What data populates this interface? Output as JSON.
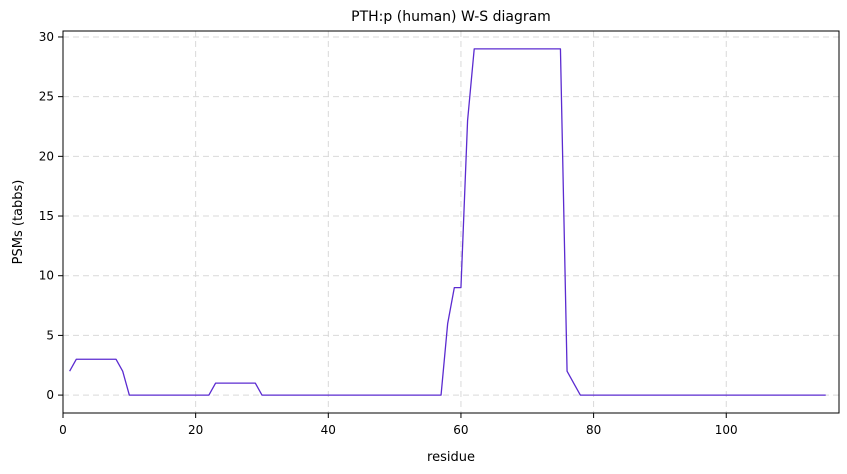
{
  "chart_data": {
    "type": "line",
    "title": "PTH:p (human) W-S diagram",
    "xlabel": "residue",
    "ylabel": "PSMs (tabbs)",
    "xlim": [
      0,
      117
    ],
    "ylim": [
      -1.5,
      30.5
    ],
    "xticks": [
      0,
      20,
      40,
      60,
      80,
      100
    ],
    "yticks": [
      0,
      5,
      10,
      15,
      20,
      25,
      30
    ],
    "grid": true,
    "series": [
      {
        "color": "#5b2bd0",
        "x": [
          1,
          2,
          3,
          4,
          5,
          6,
          7,
          8,
          9,
          10,
          11,
          12,
          13,
          14,
          15,
          16,
          17,
          18,
          19,
          20,
          21,
          22,
          23,
          24,
          25,
          26,
          27,
          28,
          29,
          30,
          31,
          32,
          33,
          34,
          35,
          36,
          37,
          38,
          39,
          40,
          41,
          42,
          43,
          44,
          45,
          46,
          47,
          48,
          49,
          50,
          51,
          52,
          53,
          54,
          55,
          56,
          57,
          58,
          59,
          60,
          61,
          62,
          63,
          64,
          65,
          66,
          67,
          68,
          69,
          70,
          71,
          72,
          73,
          74,
          75,
          76,
          77,
          78,
          79,
          80,
          81,
          82,
          83,
          84,
          85,
          86,
          87,
          88,
          89,
          90,
          91,
          92,
          93,
          94,
          95,
          96,
          97,
          98,
          99,
          100,
          101,
          102,
          103,
          104,
          105,
          106,
          107,
          108,
          109,
          110,
          111,
          112,
          113,
          114,
          115
        ],
        "y": [
          2,
          3,
          3,
          3,
          3,
          3,
          3,
          3,
          2,
          0,
          0,
          0,
          0,
          0,
          0,
          0,
          0,
          0,
          0,
          0,
          0,
          0,
          1,
          1,
          1,
          1,
          1,
          1,
          1,
          0,
          0,
          0,
          0,
          0,
          0,
          0,
          0,
          0,
          0,
          0,
          0,
          0,
          0,
          0,
          0,
          0,
          0,
          0,
          0,
          0,
          0,
          0,
          0,
          0,
          0,
          0,
          0,
          6,
          9,
          9,
          23,
          29,
          29,
          29,
          29,
          29,
          29,
          29,
          29,
          29,
          29,
          29,
          29,
          29,
          29,
          2,
          1,
          0,
          0,
          0,
          0,
          0,
          0,
          0,
          0,
          0,
          0,
          0,
          0,
          0,
          0,
          0,
          0,
          0,
          0,
          0,
          0,
          0,
          0,
          0,
          0,
          0,
          0,
          0,
          0,
          0,
          0,
          0,
          0,
          0,
          0,
          0,
          0,
          0,
          0
        ]
      }
    ]
  }
}
